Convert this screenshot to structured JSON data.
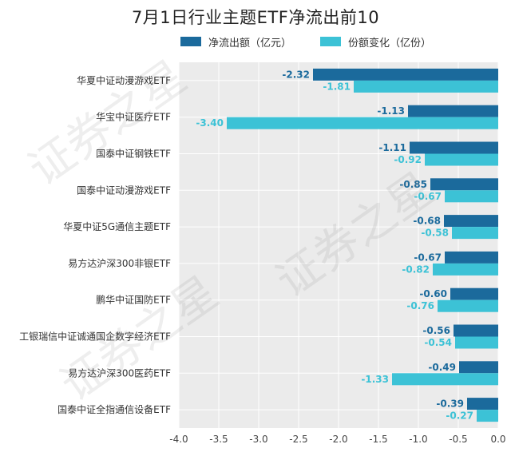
{
  "watermark": "证券之星",
  "colors": {
    "net_outflow": "#1b6a9c",
    "share_change": "#3cc2d6",
    "plot_bg": "#ebebeb",
    "grid": "#ffffff"
  },
  "chart_data": {
    "type": "bar",
    "orientation": "horizontal",
    "title": "7月1日行业主题ETF净流出前10",
    "categories": [
      "华夏中证动漫游戏ETF",
      "华宝中证医疗ETF",
      "国泰中证钢铁ETF",
      "国泰中证动漫游戏ETF",
      "华夏中证5G通信主题ETF",
      "易方达沪深300非银ETF",
      "鹏华中证国防ETF",
      "工银瑞信中证诚通国企数字经济ETF",
      "易方达沪深300医药ETF",
      "国泰中证全指通信设备ETF"
    ],
    "series": [
      {
        "name": "净流出额（亿元）",
        "values": [
          -2.32,
          -1.13,
          -1.11,
          -0.85,
          -0.68,
          -0.67,
          -0.6,
          -0.56,
          -0.49,
          -0.39
        ]
      },
      {
        "name": "份额变化（亿份）",
        "values": [
          -1.81,
          -3.4,
          -0.92,
          -0.67,
          -0.58,
          -0.82,
          -0.76,
          -0.54,
          -1.33,
          -0.27
        ]
      }
    ],
    "xlim": [
      -4.0,
      0.0
    ],
    "xticks": [
      -4.0,
      -3.5,
      -3.0,
      -2.5,
      -2.0,
      -1.5,
      -1.0,
      -0.5,
      0.0
    ],
    "xtick_labels": [
      "-4.0",
      "-3.5",
      "-3.0",
      "-2.5",
      "-2.0",
      "-1.5",
      "-1.0",
      "-0.5",
      "0.0"
    ],
    "data_labels": [
      [
        "-2.32",
        "-1.13",
        "-1.11",
        "-0.85",
        "-0.68",
        "-0.67",
        "-0.60",
        "-0.56",
        "-0.49",
        "-0.39"
      ],
      [
        "-1.81",
        "-3.40",
        "-0.92",
        "-0.67",
        "-0.58",
        "-0.82",
        "-0.76",
        "-0.54",
        "-1.33",
        "-0.27"
      ]
    ],
    "grid": true,
    "legend": "top"
  }
}
